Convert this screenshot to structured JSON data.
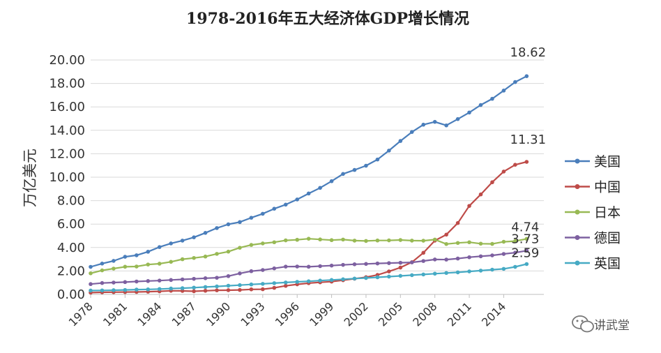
{
  "chart_data": {
    "type": "line",
    "title": "1978-2016年五大经济体GDP增长情况",
    "xlabel": "",
    "ylabel": "万亿美元",
    "ylim": [
      0,
      20
    ],
    "y_ticks": [
      "0.00",
      "2.00",
      "4.00",
      "6.00",
      "8.00",
      "10.00",
      "12.00",
      "14.00",
      "16.00",
      "18.00",
      "20.00"
    ],
    "x_tick_labels": [
      "1978",
      "1981",
      "1984",
      "1987",
      "1990",
      "1993",
      "1996",
      "1999",
      "2002",
      "2005",
      "2008",
      "2011",
      "2014"
    ],
    "x": [
      1978,
      1979,
      1980,
      1981,
      1982,
      1983,
      1984,
      1985,
      1986,
      1987,
      1988,
      1989,
      1990,
      1991,
      1992,
      1993,
      1994,
      1995,
      1996,
      1997,
      1998,
      1999,
      2000,
      2001,
      2002,
      2003,
      2004,
      2005,
      2006,
      2007,
      2008,
      2009,
      2010,
      2011,
      2012,
      2013,
      2014,
      2015,
      2016
    ],
    "grid": true,
    "legend_position": "right",
    "series": [
      {
        "name": "美国",
        "color": "#4a7ebb",
        "values": [
          2.35,
          2.63,
          2.86,
          3.21,
          3.34,
          3.64,
          4.04,
          4.35,
          4.59,
          4.87,
          5.25,
          5.66,
          5.98,
          6.17,
          6.54,
          6.88,
          7.31,
          7.66,
          8.1,
          8.61,
          9.09,
          9.66,
          10.28,
          10.62,
          10.98,
          11.51,
          12.27,
          13.09,
          13.86,
          14.48,
          14.72,
          14.42,
          14.96,
          15.52,
          16.16,
          16.69,
          17.39,
          18.12,
          18.62
        ]
      },
      {
        "name": "中国",
        "color": "#be4b48",
        "values": [
          0.15,
          0.18,
          0.19,
          0.2,
          0.21,
          0.23,
          0.26,
          0.31,
          0.3,
          0.27,
          0.31,
          0.35,
          0.36,
          0.38,
          0.43,
          0.44,
          0.56,
          0.73,
          0.86,
          0.96,
          1.03,
          1.09,
          1.21,
          1.34,
          1.47,
          1.66,
          1.96,
          2.29,
          2.75,
          3.55,
          4.59,
          5.1,
          6.09,
          7.55,
          8.53,
          9.57,
          10.48,
          11.06,
          11.31
        ]
      },
      {
        "name": "日本",
        "color": "#98b954",
        "values": [
          1.8,
          2.05,
          2.2,
          2.36,
          2.38,
          2.55,
          2.62,
          2.78,
          3.0,
          3.11,
          3.23,
          3.46,
          3.65,
          3.98,
          4.22,
          4.35,
          4.45,
          4.61,
          4.66,
          4.75,
          4.69,
          4.63,
          4.68,
          4.59,
          4.56,
          4.6,
          4.61,
          4.64,
          4.59,
          4.58,
          4.68,
          4.3,
          4.39,
          4.45,
          4.33,
          4.31,
          4.49,
          4.55,
          4.74
        ]
      },
      {
        "name": "德国",
        "color": "#7d60a0",
        "values": [
          0.88,
          0.97,
          1.01,
          1.05,
          1.1,
          1.14,
          1.18,
          1.23,
          1.28,
          1.33,
          1.38,
          1.42,
          1.56,
          1.79,
          1.98,
          2.08,
          2.22,
          2.37,
          2.38,
          2.36,
          2.41,
          2.46,
          2.52,
          2.57,
          2.6,
          2.64,
          2.67,
          2.7,
          2.73,
          2.85,
          2.98,
          2.97,
          3.06,
          3.17,
          3.25,
          3.33,
          3.45,
          3.56,
          3.73
        ]
      },
      {
        "name": "英国",
        "color": "#46aac4",
        "values": [
          0.33,
          0.34,
          0.36,
          0.38,
          0.41,
          0.43,
          0.46,
          0.5,
          0.53,
          0.58,
          0.63,
          0.68,
          0.74,
          0.79,
          0.85,
          0.9,
          0.96,
          1.02,
          1.07,
          1.12,
          1.18,
          1.23,
          1.29,
          1.35,
          1.4,
          1.46,
          1.52,
          1.58,
          1.64,
          1.7,
          1.77,
          1.83,
          1.88,
          1.96,
          2.03,
          2.11,
          2.18,
          2.35,
          2.59
        ]
      }
    ],
    "end_labels": [
      "18.62",
      "11.31",
      "4.74",
      "3.73",
      "2.59"
    ]
  },
  "watermark": {
    "text": "讲武堂",
    "icon": "wechat-icon"
  }
}
